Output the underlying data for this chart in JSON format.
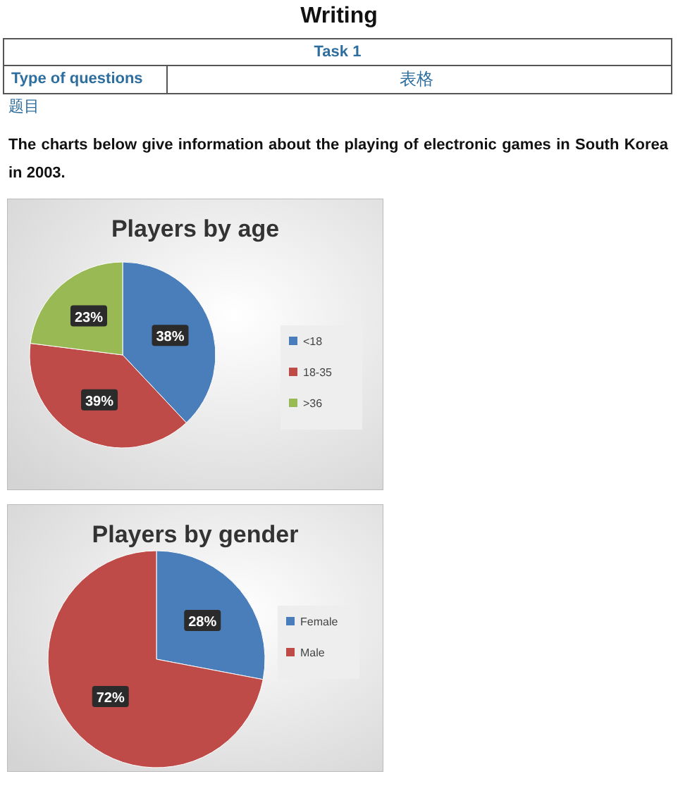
{
  "chart_data": [
    {
      "type": "other",
      "title": "Writing",
      "annotations": [
        "Task 1",
        "Type of questions",
        "表格",
        "题目",
        "The charts below give information about the playing of electronic games in South Korea in 2003."
      ]
    },
    {
      "type": "pie",
      "title": "Players by age",
      "categories": [
        "<18",
        "18-35",
        ">36"
      ],
      "values": [
        38,
        39,
        23
      ],
      "colors": [
        "#4a7ebb",
        "#be4b48",
        "#98b954"
      ],
      "value_labels": [
        "38%",
        "39%",
        "23%"
      ],
      "legend": "right"
    },
    {
      "type": "pie",
      "title": "Players by gender",
      "categories": [
        "Female",
        "Male"
      ],
      "values": [
        28,
        72
      ],
      "colors": [
        "#4a7ebb",
        "#be4b48"
      ],
      "value_labels": [
        "28%",
        "72%"
      ],
      "legend": "right"
    }
  ]
}
